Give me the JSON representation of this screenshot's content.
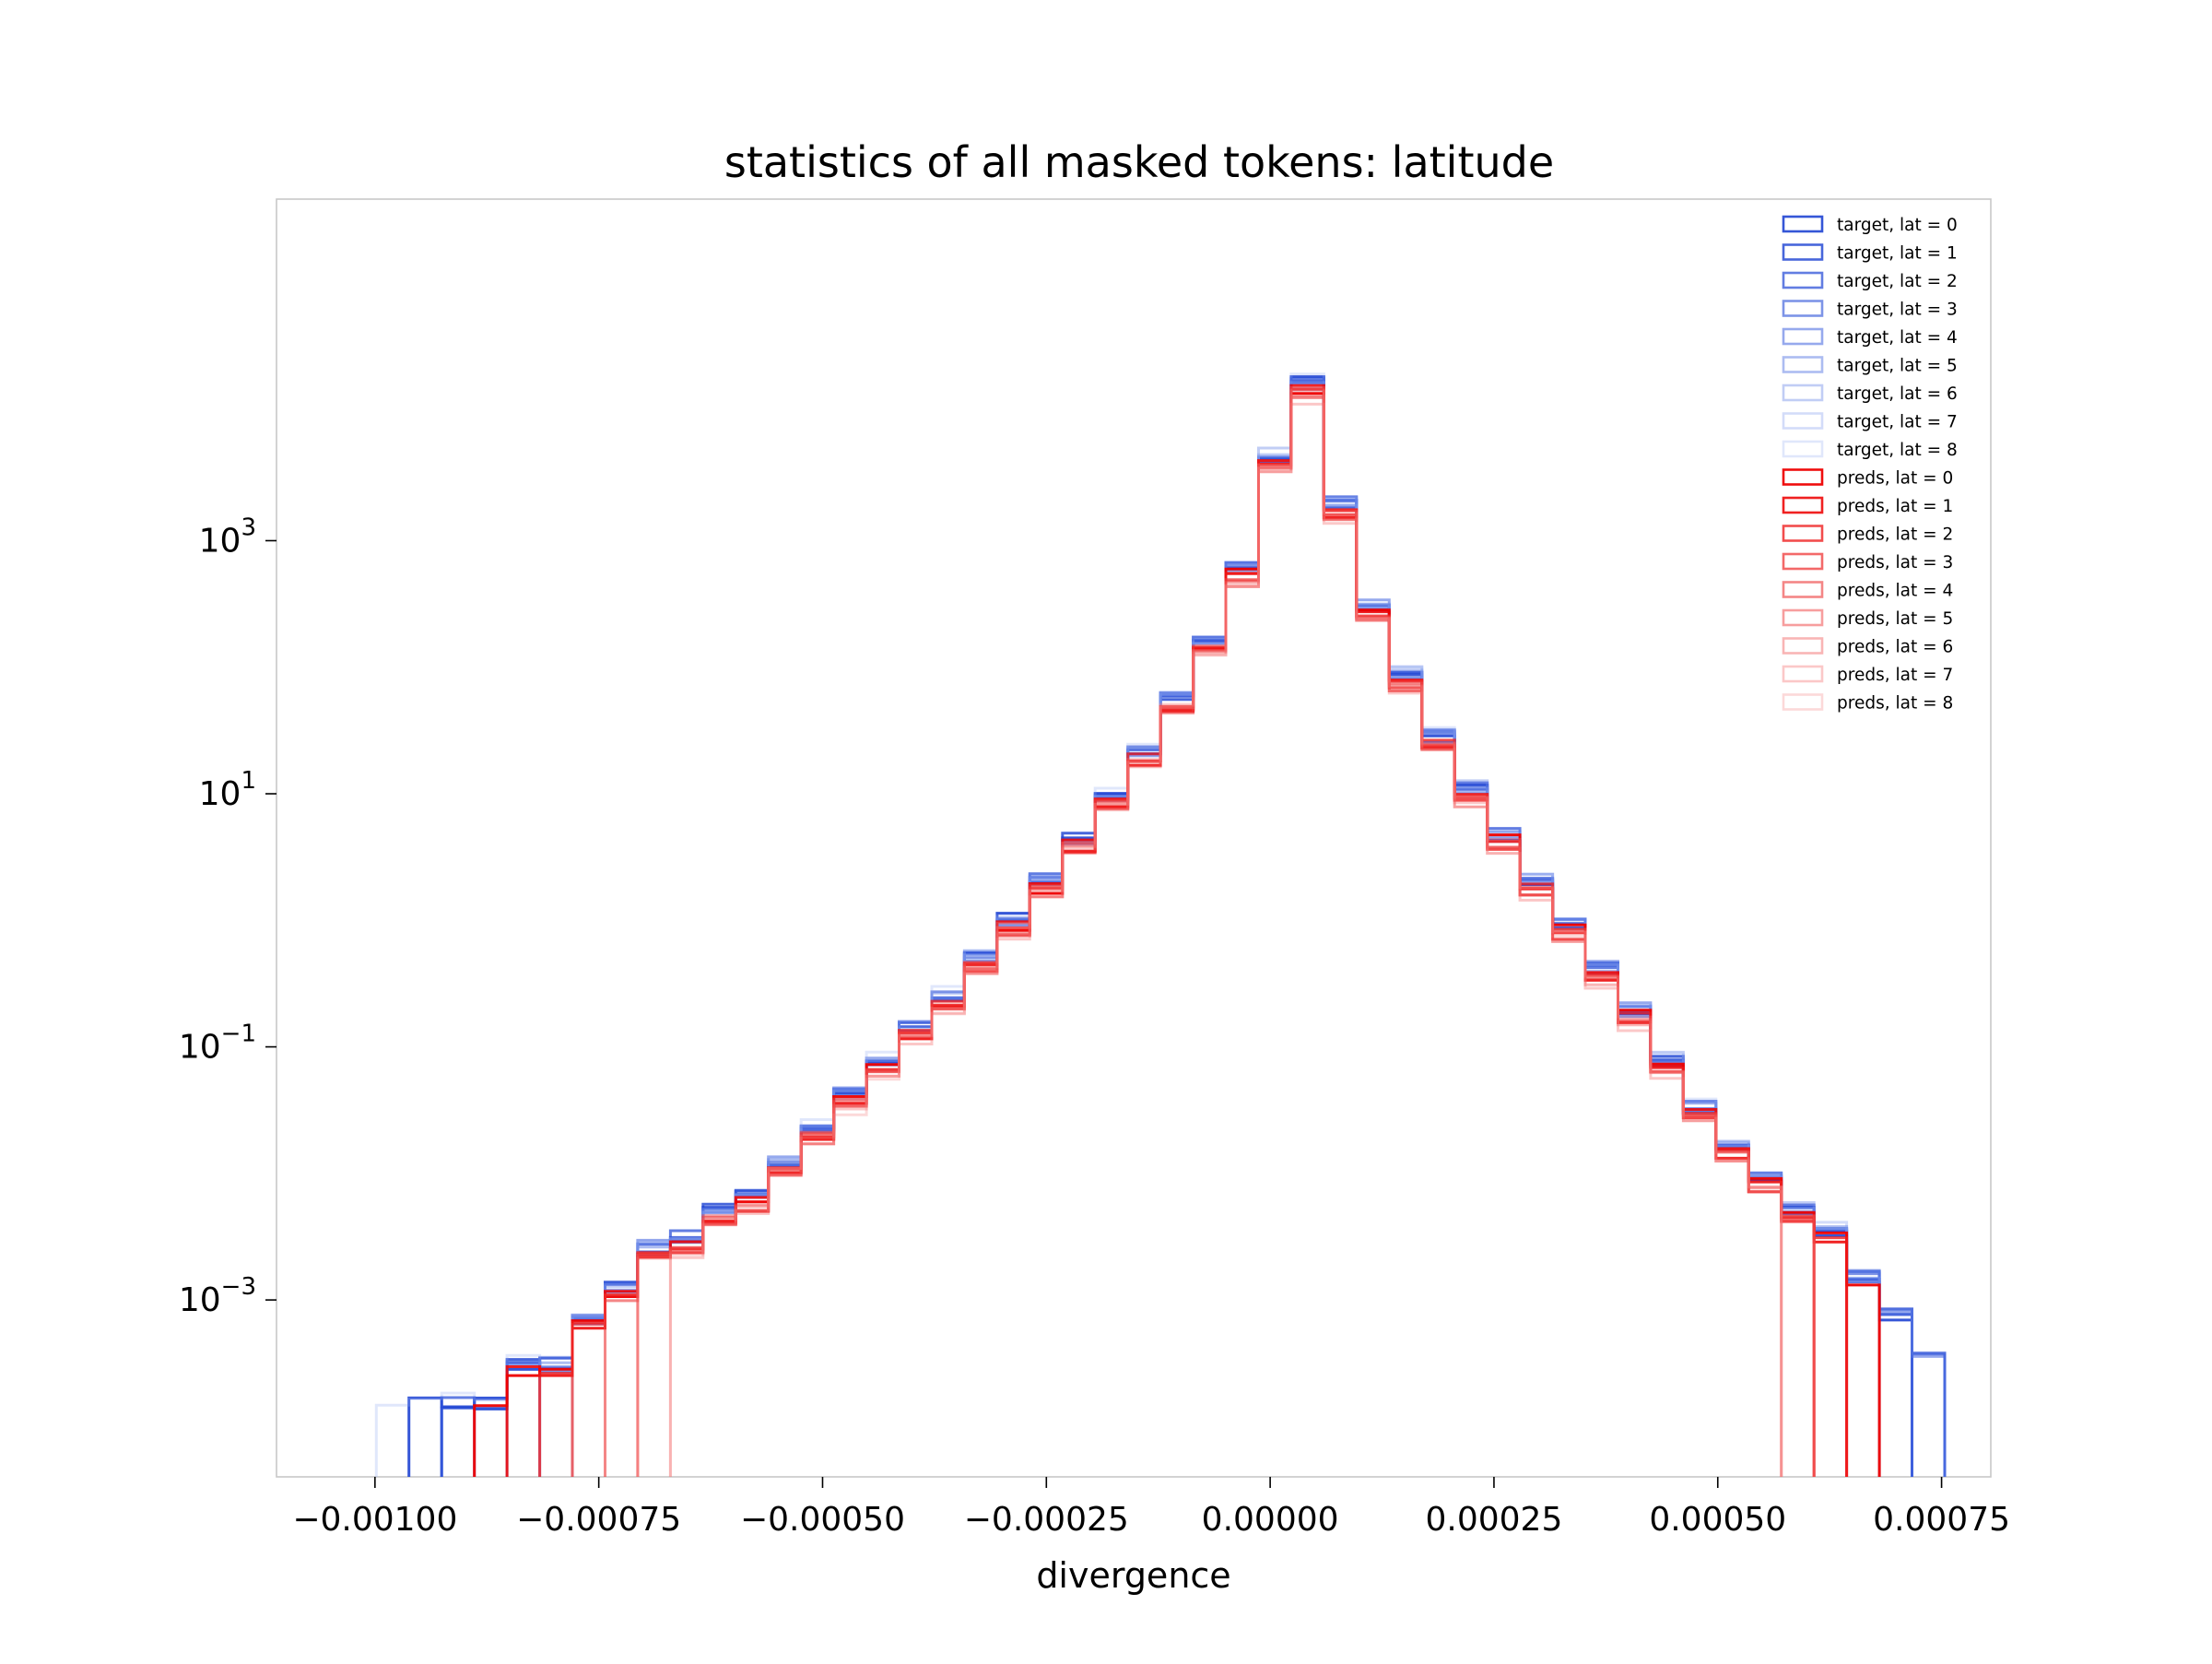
{
  "chart_data": {
    "type": "histogram-step",
    "title": "statistics of all masked tokens: latitude",
    "xlabel": "divergence",
    "ylabel": "",
    "xlim": [
      -0.00111,
      0.000805
    ],
    "ylim": [
      4e-05,
      500000
    ],
    "yscale": "log",
    "grid": false,
    "legend_position": "top-right",
    "x_ticks": [
      {
        "value": -0.001,
        "label": "−0.00100"
      },
      {
        "value": -0.00075,
        "label": "−0.00075"
      },
      {
        "value": -0.0005,
        "label": "−0.00050"
      },
      {
        "value": -0.00025,
        "label": "−0.00025"
      },
      {
        "value": 0.0,
        "label": "0.00000"
      },
      {
        "value": 0.00025,
        "label": "0.00025"
      },
      {
        "value": 0.0005,
        "label": "0.00050"
      },
      {
        "value": 0.00075,
        "label": "0.00075"
      }
    ],
    "y_ticks": [
      {
        "value": 1000,
        "base": "10",
        "exp": "3"
      },
      {
        "value": 10,
        "base": "10",
        "exp": "1"
      },
      {
        "value": 0.1,
        "base": "10",
        "exp": "−1"
      },
      {
        "value": 0.001,
        "base": "10",
        "exp": "−3"
      }
    ],
    "bin_width": 3.65e-05,
    "bin_start": -0.0010715,
    "n_bins": 50,
    "base_density": [
      null,
      null,
      0.00015,
      0.00015,
      0.00015,
      0.00015,
      0.0003,
      0.0003,
      0.0007,
      0.0012,
      0.0025,
      0.003,
      0.005,
      0.0065,
      0.012,
      0.022,
      0.04,
      0.075,
      0.14,
      0.25,
      0.5,
      1.0,
      2.0,
      4.3,
      9.5,
      21,
      56,
      155,
      580,
      4500,
      17000,
      1900,
      290,
      85,
      28,
      10.5,
      4.6,
      2.0,
      0.9,
      0.4,
      0.19,
      0.075,
      0.032,
      0.016,
      0.009,
      0.005,
      0.0035,
      0.0015,
      0.00075,
      0.00035
    ],
    "series": [
      {
        "name": "target, lat = 0",
        "color": "#1f44d3",
        "opacity": 0.9,
        "scale": 1.04,
        "min_bin": 3,
        "max_bin": 48
      },
      {
        "name": "target, lat = 1",
        "color": "#1f44d3",
        "opacity": 0.82,
        "scale": 1.03,
        "min_bin": 4,
        "max_bin": 48
      },
      {
        "name": "target, lat = 2",
        "color": "#2b50d8",
        "opacity": 0.74,
        "scale": 1.05,
        "min_bin": 4,
        "max_bin": 49
      },
      {
        "name": "target, lat = 3",
        "color": "#3a5cdb",
        "opacity": 0.66,
        "scale": 1.02,
        "min_bin": 5,
        "max_bin": 49
      },
      {
        "name": "target, lat = 4",
        "color": "#4a6be0",
        "opacity": 0.58,
        "scale": 1.06,
        "min_bin": 6,
        "max_bin": 49
      },
      {
        "name": "target, lat = 5",
        "color": "#5a7ae3",
        "opacity": 0.5,
        "scale": 1.04,
        "min_bin": 7,
        "max_bin": 48
      },
      {
        "name": "target, lat = 6",
        "color": "#6c89e8",
        "opacity": 0.42,
        "scale": 1.08,
        "min_bin": 7,
        "max_bin": 47
      },
      {
        "name": "target, lat = 7",
        "color": "#7e98ec",
        "opacity": 0.34,
        "scale": 1.05,
        "min_bin": 8,
        "max_bin": 47
      },
      {
        "name": "target, lat = 8",
        "color": "#90a8f0",
        "opacity": 0.28,
        "scale": 1.1,
        "min_bin": 1,
        "max_bin": 46
      },
      {
        "name": "preds, lat = 0",
        "color": "#ee0000",
        "opacity": 0.95,
        "scale": 0.92,
        "min_bin": 5,
        "max_bin": 47
      },
      {
        "name": "preds, lat = 1",
        "color": "#ee0000",
        "opacity": 0.87,
        "scale": 0.9,
        "min_bin": 6,
        "max_bin": 46
      },
      {
        "name": "preds, lat = 2",
        "color": "#ee1a1a",
        "opacity": 0.78,
        "scale": 0.88,
        "min_bin": 7,
        "max_bin": 46
      },
      {
        "name": "preds, lat = 3",
        "color": "#ee2a2a",
        "opacity": 0.7,
        "scale": 0.85,
        "min_bin": 8,
        "max_bin": 45
      },
      {
        "name": "preds, lat = 4",
        "color": "#ee3b3b",
        "opacity": 0.62,
        "scale": 0.87,
        "min_bin": 9,
        "max_bin": 45
      },
      {
        "name": "preds, lat = 5",
        "color": "#f04c4c",
        "opacity": 0.54,
        "scale": 0.83,
        "min_bin": 10,
        "max_bin": 45
      },
      {
        "name": "preds, lat = 6",
        "color": "#f25d5d",
        "opacity": 0.46,
        "scale": 0.86,
        "min_bin": 10,
        "max_bin": 44
      },
      {
        "name": "preds, lat = 7",
        "color": "#f46e6e",
        "opacity": 0.38,
        "scale": 0.8,
        "min_bin": 11,
        "max_bin": 44
      },
      {
        "name": "preds, lat = 8",
        "color": "#f68080",
        "opacity": 0.3,
        "scale": 0.82,
        "min_bin": 11,
        "max_bin": 44
      }
    ]
  }
}
